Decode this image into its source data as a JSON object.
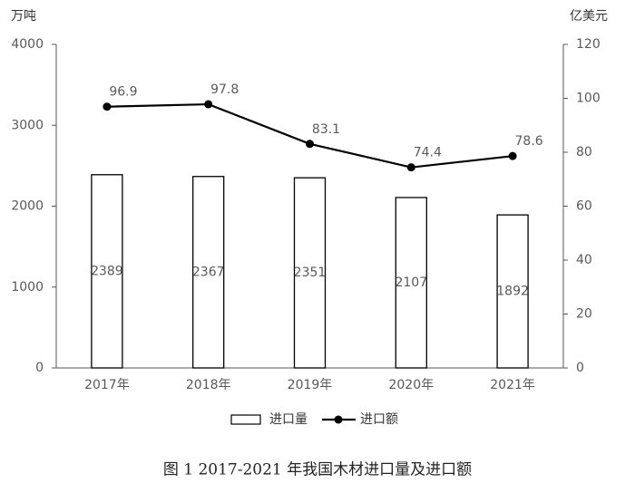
{
  "chart_data": {
    "type": "bar",
    "caption": "图 1   2017-2021 年我国木材进口量及进口额",
    "y_label": "万吨",
    "y2_label": "亿美元",
    "categories": [
      "2017年",
      "2018年",
      "2019年",
      "2020年",
      "2021年"
    ],
    "series": [
      {
        "name": "进口量",
        "type": "bar",
        "color": "#ffffff",
        "values": [
          2389,
          2367,
          2351,
          2107,
          1892
        ]
      },
      {
        "name": "进口额",
        "type": "line",
        "axis": "y2",
        "color": "#000000",
        "values": [
          96.9,
          97.8,
          83.1,
          74.4,
          78.6
        ]
      }
    ],
    "ylim": [
      0,
      4000
    ],
    "yticks": [
      0,
      1000,
      2000,
      3000,
      4000
    ],
    "y2lim": [
      0,
      120
    ],
    "y2ticks": [
      0,
      20,
      40,
      60,
      80,
      100,
      120
    ],
    "grid": false
  }
}
